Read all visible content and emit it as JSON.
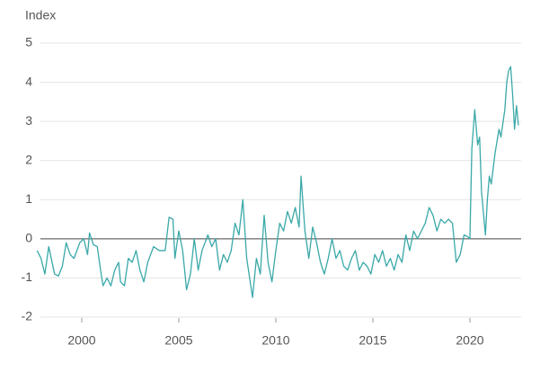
{
  "chart_data": {
    "type": "line",
    "y_label": "Index",
    "x": [
      1997.7,
      1997.9,
      1998.1,
      1998.3,
      1998.6,
      1998.8,
      1999.0,
      1999.2,
      1999.4,
      1999.6,
      1999.9,
      2000.1,
      2000.3,
      2000.4,
      2000.6,
      2000.8,
      2001.0,
      2001.1,
      2001.3,
      2001.5,
      2001.7,
      2001.9,
      2002.0,
      2002.2,
      2002.4,
      2002.6,
      2002.8,
      2003.0,
      2003.2,
      2003.4,
      2003.7,
      2004.0,
      2004.3,
      2004.5,
      2004.7,
      2004.8,
      2005.0,
      2005.2,
      2005.4,
      2005.6,
      2005.8,
      2006.0,
      2006.2,
      2006.5,
      2006.7,
      2006.9,
      2007.1,
      2007.3,
      2007.5,
      2007.7,
      2007.9,
      2008.1,
      2008.3,
      2008.5,
      2008.8,
      2009.0,
      2009.2,
      2009.4,
      2009.6,
      2009.8,
      2010.0,
      2010.2,
      2010.4,
      2010.6,
      2010.8,
      2011.0,
      2011.2,
      2011.3,
      2011.5,
      2011.7,
      2011.9,
      2012.1,
      2012.3,
      2012.5,
      2012.7,
      2012.9,
      2013.1,
      2013.3,
      2013.5,
      2013.7,
      2013.9,
      2014.1,
      2014.3,
      2014.5,
      2014.7,
      2014.9,
      2015.1,
      2015.3,
      2015.5,
      2015.7,
      2015.9,
      2016.1,
      2016.3,
      2016.5,
      2016.7,
      2016.9,
      2017.1,
      2017.3,
      2017.5,
      2017.7,
      2017.9,
      2018.1,
      2018.3,
      2018.5,
      2018.7,
      2018.9,
      2019.1,
      2019.3,
      2019.5,
      2019.7,
      2019.9,
      2020.0,
      2020.1,
      2020.25,
      2020.4,
      2020.5,
      2020.6,
      2020.8,
      2020.9,
      2021.0,
      2021.1,
      2021.3,
      2021.5,
      2021.6,
      2021.8,
      2021.9,
      2022.0,
      2022.1,
      2022.2,
      2022.3,
      2022.4,
      2022.5
    ],
    "series": [
      {
        "color": "#3aa8a8",
        "values": [
          -0.3,
          -0.5,
          -0.9,
          -0.2,
          -0.9,
          -0.95,
          -0.7,
          -0.1,
          -0.4,
          -0.5,
          -0.1,
          0.0,
          -0.4,
          0.15,
          -0.15,
          -0.2,
          -0.9,
          -1.2,
          -1.0,
          -1.2,
          -0.8,
          -0.6,
          -1.1,
          -1.2,
          -0.5,
          -0.6,
          -0.3,
          -0.8,
          -1.1,
          -0.6,
          -0.2,
          -0.3,
          -0.3,
          0.55,
          0.5,
          -0.5,
          0.2,
          -0.3,
          -1.3,
          -0.9,
          0.0,
          -0.8,
          -0.3,
          0.1,
          -0.2,
          0.0,
          -0.8,
          -0.4,
          -0.6,
          -0.3,
          0.4,
          0.1,
          1.0,
          -0.5,
          -1.5,
          -0.5,
          -0.9,
          0.6,
          -0.6,
          -1.1,
          -0.3,
          0.4,
          0.2,
          0.7,
          0.4,
          0.8,
          0.3,
          1.6,
          0.2,
          -0.5,
          0.3,
          -0.1,
          -0.6,
          -0.9,
          -0.5,
          0.0,
          -0.5,
          -0.3,
          -0.7,
          -0.8,
          -0.5,
          -0.3,
          -0.8,
          -0.6,
          -0.7,
          -0.9,
          -0.4,
          -0.6,
          -0.3,
          -0.7,
          -0.5,
          -0.8,
          -0.4,
          -0.6,
          0.1,
          -0.3,
          0.2,
          0.0,
          0.2,
          0.4,
          0.8,
          0.6,
          0.2,
          0.5,
          0.4,
          0.5,
          0.4,
          -0.6,
          -0.4,
          0.1,
          0.05,
          0.0,
          2.3,
          3.3,
          2.4,
          2.6,
          1.2,
          0.1,
          1.0,
          1.6,
          1.4,
          2.2,
          2.8,
          2.6,
          3.3,
          4.0,
          4.3,
          4.4,
          3.7,
          2.8,
          3.4,
          2.9
        ]
      }
    ],
    "xlim": [
      1997.64,
      2022.64
    ],
    "xticks": [
      2000,
      2005,
      2010,
      2015,
      2020
    ],
    "ylim": [
      -2,
      5
    ],
    "yticks": [
      -2,
      -1,
      0,
      1,
      2,
      3,
      4,
      5
    ],
    "grid": true
  }
}
